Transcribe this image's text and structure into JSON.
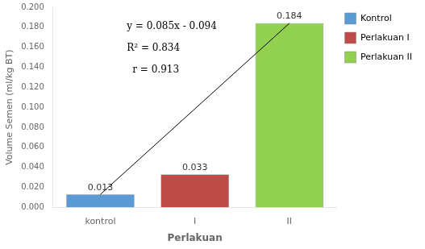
{
  "chart_data": {
    "type": "bar",
    "categories": [
      "kontrol",
      "I",
      "II"
    ],
    "values": [
      0.013,
      0.033,
      0.184
    ],
    "colors": [
      "#5b9bd5",
      "#be4b48",
      "#92d050"
    ],
    "data_labels": true,
    "xlabel": "Perlakuan",
    "ylabel": "Volume Semen (ml/kg BT)",
    "ylim": [
      0,
      0.2
    ],
    "yticks": [
      {
        "value": 0,
        "label": "0.000"
      },
      {
        "value": 0.02,
        "label": "0.020"
      },
      {
        "value": 0.04,
        "label": "0.040"
      },
      {
        "value": 0.06,
        "label": "0.060"
      },
      {
        "value": 0.08,
        "label": "0.080"
      },
      {
        "value": 0.1,
        "label": "0.100"
      },
      {
        "value": 0.12,
        "label": "0.120"
      },
      {
        "value": 0.14,
        "label": "0.140"
      },
      {
        "value": 0.16,
        "label": "0.160"
      },
      {
        "value": 0.18,
        "label": "0.180"
      },
      {
        "value": 0.2,
        "label": "0.200"
      }
    ],
    "grid": false,
    "trend_line": {
      "categories": [
        "kontrol",
        "II"
      ],
      "values": [
        0.013,
        0.184
      ],
      "color": "#000000"
    },
    "annotations": [
      "y = 0.085x - 0.094",
      "R² = 0.834",
      "r = 0.913"
    ],
    "legend": "upper right",
    "legend_labels": [
      "Kontrol",
      "Perlakuan I",
      "Perlakuan II"
    ]
  }
}
